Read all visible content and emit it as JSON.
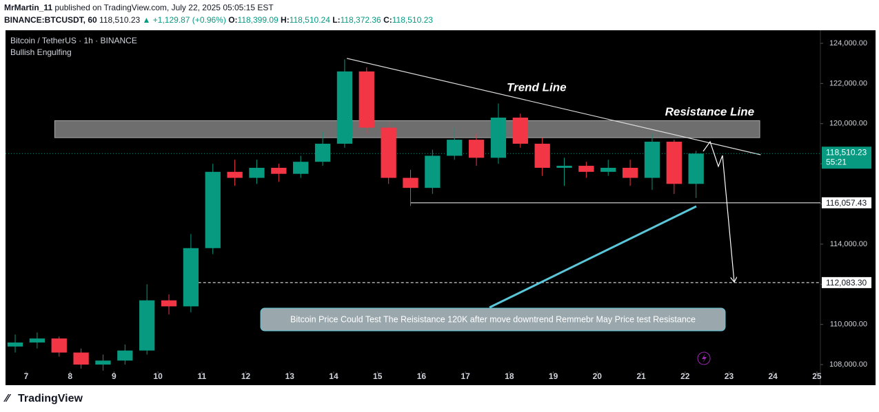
{
  "header": {
    "author": "MrMartin_11",
    "published": "published on TradingView.com, July 22, 2025 05:05:15 EST",
    "symbol": "BINANCE:BTCUSDT, 60",
    "price": "118,510.23",
    "change": "▲ +1,129.87 (+0.96%)",
    "o_label": "O:",
    "o": "118,399.09",
    "h_label": "H:",
    "h": "118,510.24",
    "l_label": "L:",
    "l": "118,372.36",
    "c_label": "C:",
    "c": "118,510.23"
  },
  "chart_data": {
    "type": "candlestick",
    "title": "Bitcoin / TetherUS · 1h · BINANCE",
    "indicator": "Bullish Engulfing",
    "colors": {
      "up": "#089981",
      "down": "#f23645"
    },
    "x": [
      6.75,
      7.25,
      7.75,
      8.25,
      8.75,
      9.25,
      9.75,
      10.25,
      10.75,
      11.25,
      11.75,
      12.25,
      12.75,
      13.25,
      13.75,
      14.25,
      14.75,
      15.25,
      15.75,
      16.25,
      16.75,
      17.25,
      17.75,
      18.25,
      18.75,
      19.25,
      19.75,
      20.25,
      20.75,
      21.25,
      21.75,
      22.25
    ],
    "open": [
      108900,
      109100,
      109300,
      108600,
      108000,
      108200,
      108700,
      111200,
      110900,
      113800,
      117600,
      117300,
      117800,
      117500,
      118100,
      119000,
      122600,
      119800,
      117300,
      116800,
      118400,
      119200,
      118300,
      120300,
      119000,
      117800,
      117900,
      117600,
      117800,
      117300,
      119100,
      117000
    ],
    "high": [
      109500,
      109600,
      109400,
      108800,
      108500,
      109000,
      112000,
      111500,
      114500,
      118000,
      118200,
      118200,
      118000,
      118400,
      119600,
      123200,
      122800,
      120100,
      117700,
      118700,
      119800,
      119500,
      121000,
      120500,
      119300,
      118300,
      118100,
      118200,
      118200,
      119500,
      119200,
      118650
    ],
    "low": [
      108600,
      108800,
      108400,
      107800,
      107700,
      108000,
      108500,
      110500,
      110600,
      113500,
      116900,
      117000,
      117100,
      117300,
      117900,
      118800,
      119500,
      117000,
      115900,
      116500,
      118200,
      117900,
      118000,
      118800,
      117400,
      116900,
      117300,
      117400,
      116900,
      116700,
      116500,
      116300
    ],
    "close": [
      109100,
      109300,
      108600,
      108000,
      108200,
      108700,
      111200,
      110900,
      113800,
      117600,
      117300,
      117800,
      117500,
      118100,
      119000,
      122600,
      119800,
      117300,
      116800,
      118400,
      119200,
      118300,
      120300,
      119000,
      117800,
      117900,
      117600,
      117800,
      117300,
      119100,
      117000,
      118510.23
    ],
    "xlim": [
      6.53,
      25.08
    ],
    "ylim": [
      107660,
      124650
    ],
    "xticks": [
      7,
      8,
      9,
      10,
      11,
      12,
      13,
      14,
      15,
      16,
      17,
      18,
      19,
      20,
      21,
      22,
      23,
      24,
      25
    ],
    "yticks": [
      {
        "value": 108000,
        "label": "108,000.00"
      },
      {
        "value": 110000,
        "label": "110,000.00"
      },
      {
        "value": 112000,
        "label": "112,000.00"
      },
      {
        "value": 114000,
        "label": "114,000.00"
      },
      {
        "value": 116000,
        "label": "116,000.00"
      },
      {
        "value": 118000,
        "label": "118,000.00"
      },
      {
        "value": 120000,
        "label": "120,000.00"
      },
      {
        "value": 122000,
        "label": "122,000.00"
      },
      {
        "value": 124000,
        "label": "124,000.00"
      }
    ],
    "grid": false,
    "last_price": {
      "value": 118510.23,
      "label": "118,510.23",
      "countdown": "55:21"
    },
    "levels": [
      {
        "value": 116057.43,
        "label": "116,057.43",
        "start": 15.75
      },
      {
        "value": 112083.3,
        "label": "112,083.30",
        "start": 10.7
      }
    ],
    "resistance_zone": {
      "label": "Resistance Line",
      "x": [
        7.65,
        23.7
      ],
      "y": [
        119300,
        120150
      ]
    },
    "trend_line": {
      "label": "Trend Line",
      "x": [
        14.3,
        23.72
      ],
      "y": [
        123250,
        118450
      ]
    },
    "annotation": "Bitcoin Price Could Test The Reisistance 120K after move downtrend Remmebr May Price test Resistance"
  },
  "footer": {
    "brand": "TradingView"
  }
}
